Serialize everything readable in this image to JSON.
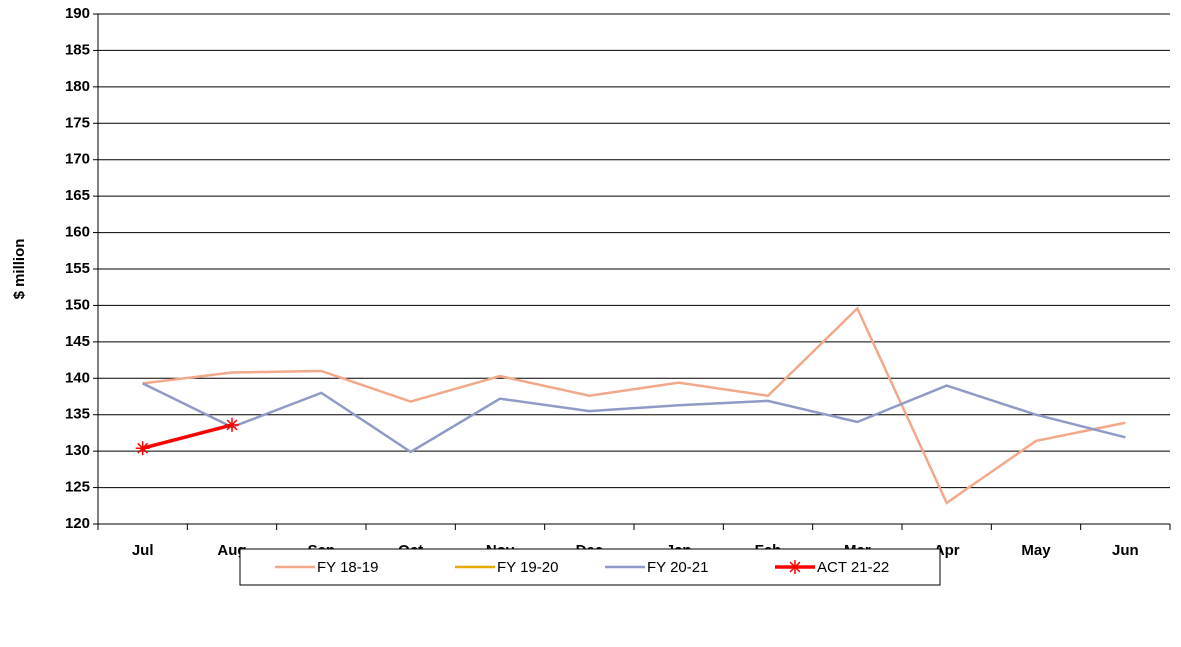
{
  "chart_data": {
    "type": "line",
    "y_label": "$ million",
    "categories": [
      "Jul",
      "Aug",
      "Sep",
      "Oct",
      "Nov",
      "Dec",
      "Jan",
      "Feb",
      "Mar",
      "Apr",
      "May",
      "Jun"
    ],
    "series": [
      {
        "name": "FY 18-19",
        "color": "#f2a98a",
        "values": [
          139.3,
          140.8,
          141,
          136.8,
          140.3,
          137.6,
          139.4,
          137.6,
          149.6,
          122.9,
          131.4,
          133.9
        ]
      },
      {
        "name": "FY 19-20",
        "color": "#e8aa00",
        "values": [
          null,
          null,
          null,
          null,
          null,
          null,
          null,
          null,
          null,
          null,
          null,
          null
        ]
      },
      {
        "name": "FY 20-21",
        "color": "#8f9bc6",
        "values": [
          139.3,
          133.3,
          138,
          129.9,
          137.2,
          135.5,
          136.3,
          136.9,
          134,
          139,
          135,
          131.9
        ]
      },
      {
        "name": "ACT 21-22",
        "color": "#ff0000",
        "marker": "asterisk",
        "values": [
          130.4,
          133.6,
          null,
          null,
          null,
          null,
          null,
          null,
          null,
          null,
          null,
          null
        ]
      }
    ],
    "ylim": [
      120,
      190
    ],
    "yticks": [
      120,
      125,
      130,
      135,
      140,
      145,
      150,
      155,
      160,
      165,
      170,
      175,
      180,
      185,
      190
    ],
    "grid": true,
    "legend": "bottom"
  }
}
